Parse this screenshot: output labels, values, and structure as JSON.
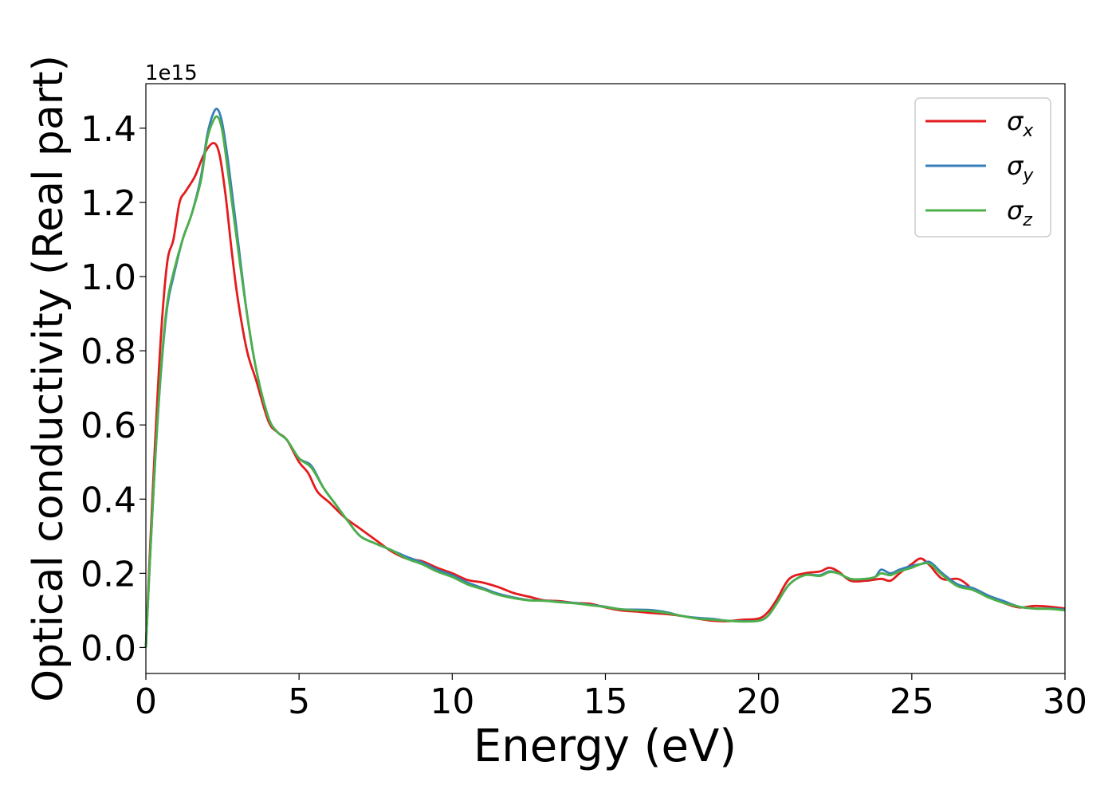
{
  "chart_data": {
    "type": "line",
    "xlabel": "Energy (eV)",
    "ylabel": "Optical conductivity (Real part)",
    "y_offset_label": "1e15",
    "xlim": [
      0,
      30
    ],
    "ylim": [
      -0.07,
      1.52
    ],
    "xticks": [
      0,
      5,
      10,
      15,
      20,
      25,
      30
    ],
    "yticks": [
      0.0,
      0.2,
      0.4,
      0.6,
      0.8,
      1.0,
      1.2,
      1.4
    ],
    "xtick_labels": [
      "0",
      "5",
      "10",
      "15",
      "20",
      "25",
      "30"
    ],
    "ytick_labels": [
      "0.0",
      "0.2",
      "0.4",
      "0.6",
      "0.8",
      "1.0",
      "1.2",
      "1.4"
    ],
    "grid": false,
    "legend_position": "top-right",
    "series": [
      {
        "name": "σx",
        "symbol": "σ",
        "subscript": "x",
        "color": "#e41a1c",
        "x": [
          0,
          0.1,
          0.3,
          0.5,
          0.7,
          0.9,
          1.1,
          1.3,
          1.6,
          1.9,
          2.2,
          2.4,
          2.6,
          2.8,
          3.0,
          3.3,
          3.6,
          4.0,
          4.3,
          4.6,
          5.0,
          5.3,
          5.6,
          6.0,
          6.5,
          7.0,
          7.5,
          8.0,
          8.5,
          9.0,
          9.5,
          10.0,
          10.5,
          11.0,
          11.5,
          12.0,
          12.5,
          13.0,
          13.5,
          14.0,
          14.5,
          15.0,
          15.5,
          16.0,
          16.5,
          17.0,
          17.5,
          18.0,
          18.5,
          19.0,
          19.5,
          20.0,
          20.3,
          20.6,
          21.0,
          21.5,
          22.0,
          22.3,
          22.6,
          23.0,
          23.5,
          24.0,
          24.3,
          24.6,
          25.0,
          25.3,
          25.6,
          26.0,
          26.5,
          26.8,
          27.0,
          27.5,
          28.0,
          28.5,
          29.0,
          29.5,
          30.0
        ],
        "values": [
          0.0,
          0.2,
          0.55,
          0.85,
          1.04,
          1.1,
          1.2,
          1.23,
          1.27,
          1.33,
          1.36,
          1.33,
          1.22,
          1.07,
          0.94,
          0.8,
          0.72,
          0.61,
          0.58,
          0.56,
          0.5,
          0.47,
          0.42,
          0.39,
          0.35,
          0.32,
          0.29,
          0.26,
          0.24,
          0.233,
          0.215,
          0.2,
          0.182,
          0.175,
          0.163,
          0.147,
          0.137,
          0.127,
          0.125,
          0.12,
          0.118,
          0.108,
          0.1,
          0.097,
          0.093,
          0.09,
          0.085,
          0.078,
          0.072,
          0.071,
          0.075,
          0.078,
          0.095,
          0.13,
          0.185,
          0.2,
          0.205,
          0.215,
          0.205,
          0.18,
          0.18,
          0.185,
          0.18,
          0.2,
          0.225,
          0.24,
          0.22,
          0.185,
          0.185,
          0.17,
          0.155,
          0.14,
          0.12,
          0.108,
          0.112,
          0.11,
          0.105
        ]
      },
      {
        "name": "σy",
        "symbol": "σ",
        "subscript": "y",
        "color": "#377eb8",
        "x": [
          0,
          0.1,
          0.3,
          0.5,
          0.7,
          0.9,
          1.2,
          1.5,
          1.8,
          2.0,
          2.2,
          2.35,
          2.5,
          2.7,
          3.0,
          3.3,
          3.6,
          4.0,
          4.3,
          4.6,
          5.0,
          5.4,
          5.8,
          6.2,
          6.6,
          7.0,
          7.5,
          8.0,
          8.5,
          9.0,
          9.5,
          10.0,
          10.5,
          11.0,
          11.5,
          12.0,
          12.5,
          13.0,
          13.5,
          14.0,
          14.5,
          15.0,
          15.5,
          16.0,
          16.5,
          17.0,
          17.5,
          18.0,
          18.5,
          19.0,
          19.5,
          20.0,
          20.3,
          20.6,
          21.0,
          21.5,
          22.0,
          22.3,
          22.6,
          23.0,
          23.5,
          23.8,
          24.0,
          24.3,
          24.6,
          25.0,
          25.3,
          25.6,
          26.0,
          26.5,
          27.0,
          27.5,
          28.0,
          28.5,
          29.0,
          29.5,
          30.0
        ],
        "values": [
          0.0,
          0.18,
          0.5,
          0.75,
          0.92,
          1.0,
          1.1,
          1.17,
          1.27,
          1.38,
          1.44,
          1.45,
          1.41,
          1.3,
          1.1,
          0.9,
          0.75,
          0.62,
          0.58,
          0.56,
          0.51,
          0.49,
          0.43,
          0.385,
          0.34,
          0.3,
          0.28,
          0.263,
          0.245,
          0.23,
          0.21,
          0.195,
          0.175,
          0.16,
          0.145,
          0.135,
          0.128,
          0.126,
          0.123,
          0.12,
          0.115,
          0.11,
          0.103,
          0.102,
          0.101,
          0.095,
          0.085,
          0.08,
          0.077,
          0.072,
          0.071,
          0.072,
          0.085,
          0.12,
          0.17,
          0.195,
          0.195,
          0.205,
          0.2,
          0.185,
          0.185,
          0.19,
          0.21,
          0.2,
          0.21,
          0.22,
          0.225,
          0.23,
          0.2,
          0.17,
          0.16,
          0.14,
          0.125,
          0.11,
          0.105,
          0.105,
          0.102
        ]
      },
      {
        "name": "σz",
        "symbol": "σ",
        "subscript": "z",
        "color": "#4daf4a",
        "x": [
          0,
          0.1,
          0.3,
          0.5,
          0.7,
          0.9,
          1.2,
          1.5,
          1.8,
          2.0,
          2.2,
          2.35,
          2.5,
          2.7,
          3.0,
          3.3,
          3.6,
          4.0,
          4.3,
          4.6,
          5.0,
          5.4,
          5.8,
          6.2,
          6.6,
          7.0,
          7.5,
          8.0,
          8.5,
          9.0,
          9.5,
          10.0,
          10.5,
          11.0,
          11.5,
          12.0,
          12.5,
          13.0,
          13.5,
          14.0,
          14.5,
          15.0,
          15.5,
          16.0,
          16.5,
          17.0,
          17.5,
          18.0,
          18.5,
          19.0,
          19.5,
          20.0,
          20.3,
          20.6,
          21.0,
          21.5,
          22.0,
          22.3,
          22.6,
          23.0,
          23.5,
          23.8,
          24.0,
          24.3,
          24.6,
          25.0,
          25.3,
          25.6,
          26.0,
          26.5,
          27.0,
          27.5,
          28.0,
          28.5,
          29.0,
          29.5,
          30.0
        ],
        "values": [
          0.0,
          0.18,
          0.5,
          0.76,
          0.93,
          1.01,
          1.1,
          1.17,
          1.26,
          1.37,
          1.42,
          1.43,
          1.39,
          1.27,
          1.08,
          0.9,
          0.75,
          0.62,
          0.58,
          0.56,
          0.51,
          0.485,
          0.43,
          0.385,
          0.34,
          0.3,
          0.28,
          0.263,
          0.24,
          0.225,
          0.205,
          0.19,
          0.17,
          0.157,
          0.142,
          0.133,
          0.127,
          0.126,
          0.122,
          0.119,
          0.114,
          0.109,
          0.103,
          0.1,
          0.098,
          0.093,
          0.085,
          0.078,
          0.075,
          0.072,
          0.07,
          0.072,
          0.085,
          0.12,
          0.17,
          0.195,
          0.193,
          0.203,
          0.2,
          0.185,
          0.185,
          0.19,
          0.2,
          0.195,
          0.205,
          0.215,
          0.225,
          0.225,
          0.195,
          0.165,
          0.155,
          0.135,
          0.12,
          0.11,
          0.105,
          0.104,
          0.1
        ]
      }
    ]
  }
}
